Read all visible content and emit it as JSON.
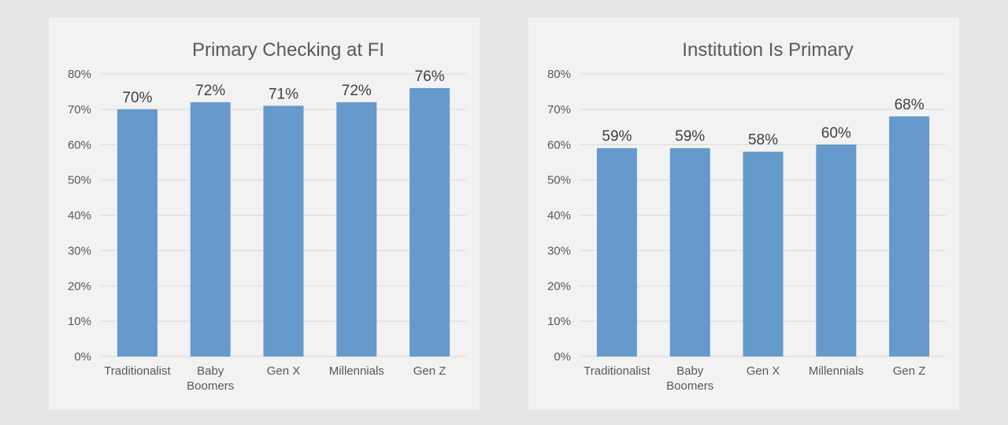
{
  "chart_data": [
    {
      "type": "bar",
      "title": "Primary Checking at FI",
      "categories": [
        [
          "Traditionalist"
        ],
        [
          "Baby",
          "Boomers"
        ],
        [
          "Gen X"
        ],
        [
          "Millennials"
        ],
        [
          "Gen Z"
        ]
      ],
      "values": [
        70,
        72,
        71,
        72,
        76
      ],
      "data_labels": [
        "70%",
        "72%",
        "71%",
        "72%",
        "76%"
      ],
      "yticks": [
        "0%",
        "10%",
        "20%",
        "30%",
        "40%",
        "50%",
        "60%",
        "70%",
        "80%"
      ],
      "ylim": [
        0,
        80
      ],
      "xlabel": "",
      "ylabel": "",
      "grid": true,
      "bar_color": "#6699cc"
    },
    {
      "type": "bar",
      "title": "Institution Is Primary",
      "categories": [
        [
          "Traditionalist"
        ],
        [
          "Baby",
          "Boomers"
        ],
        [
          "Gen X"
        ],
        [
          "Millennials"
        ],
        [
          "Gen Z"
        ]
      ],
      "values": [
        59,
        59,
        58,
        60,
        68
      ],
      "data_labels": [
        "59%",
        "59%",
        "58%",
        "60%",
        "68%"
      ],
      "yticks": [
        "0%",
        "10%",
        "20%",
        "30%",
        "40%",
        "50%",
        "60%",
        "70%",
        "80%"
      ],
      "ylim": [
        0,
        80
      ],
      "xlabel": "",
      "ylabel": "",
      "grid": true,
      "bar_color": "#6699cc"
    }
  ]
}
